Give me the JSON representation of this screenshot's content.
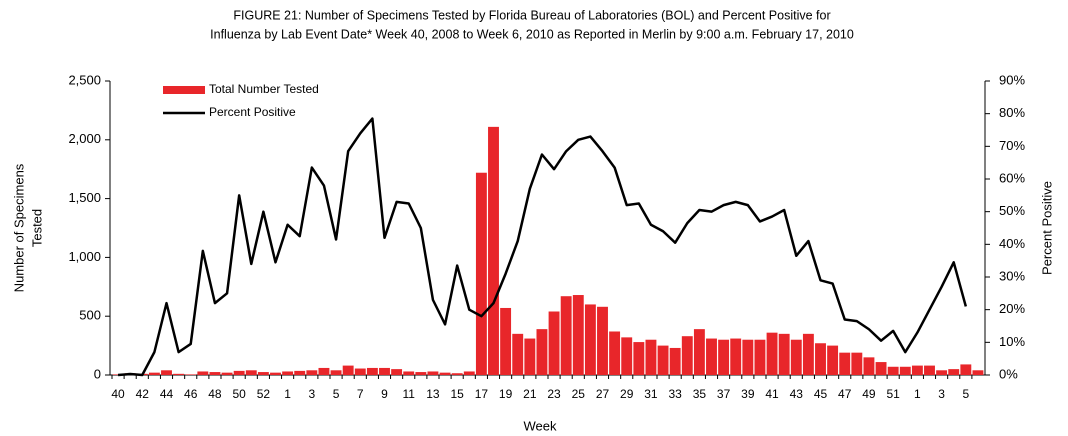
{
  "chart_data": {
    "type": "bar_line",
    "title": [
      "FIGURE 21: Number of Specimens Tested by Florida Bureau of Laboratories (BOL) and Percent Positive for",
      "Influenza by Lab Event Date* Week 40, 2008 to Week 6, 2010 as Reported in Merlin by 9:00 a.m. February 17, 2010"
    ],
    "xlabel": "Week",
    "ylabel": [
      "Number of Specimens",
      "Tested"
    ],
    "y2label": "Percent Positive",
    "categories": [
      "40",
      null,
      "42",
      null,
      "44",
      null,
      "46",
      null,
      "48",
      null,
      "50",
      null,
      "52",
      null,
      "1",
      null,
      "3",
      null,
      "5",
      null,
      "7",
      null,
      "9",
      null,
      "11",
      null,
      "13",
      null,
      "15",
      null,
      "17",
      null,
      "19",
      null,
      "21",
      null,
      "23",
      null,
      "25",
      null,
      "27",
      null,
      "29",
      null,
      "31",
      null,
      "33",
      null,
      "35",
      null,
      "37",
      null,
      "39",
      null,
      "41",
      null,
      "43",
      null,
      "45",
      null,
      "47",
      null,
      "49",
      null,
      "51",
      null,
      "1",
      null,
      "3",
      null,
      "5",
      null
    ],
    "series": [
      {
        "name": "Total Number Tested",
        "type": "bar",
        "color": "#e8262a",
        "values": [
          5,
          15,
          10,
          20,
          40,
          10,
          5,
          30,
          25,
          20,
          35,
          40,
          25,
          20,
          30,
          35,
          40,
          60,
          40,
          80,
          55,
          60,
          60,
          50,
          30,
          25,
          30,
          20,
          15,
          30,
          1720,
          2110,
          570,
          350,
          310,
          390,
          540,
          670,
          680,
          600,
          580,
          370,
          320,
          280,
          300,
          250,
          230,
          330,
          390,
          310,
          300,
          310,
          300,
          300,
          360,
          350,
          300,
          350,
          270,
          250,
          190,
          190,
          150,
          110,
          70,
          70,
          80,
          80,
          40,
          50,
          90,
          40
        ]
      },
      {
        "name": "Percent Positive",
        "type": "line",
        "color": "#000000",
        "axis": "y2",
        "values": [
          0,
          0.3,
          0,
          7,
          22,
          7,
          9.5,
          38,
          22,
          25,
          55,
          34,
          50,
          34.5,
          46,
          42.5,
          63.5,
          58,
          41.5,
          68.5,
          74,
          78.5,
          42,
          53,
          52.5,
          45,
          23,
          15.5,
          33.5,
          20,
          18,
          22,
          31,
          41,
          57,
          67.5,
          63,
          68.5,
          72,
          73,
          68.5,
          63.5,
          52,
          52.5,
          46,
          44,
          40.5,
          46.5,
          50.5,
          50,
          52,
          53,
          52,
          47,
          48.5,
          50.5,
          36.5,
          41,
          29,
          28,
          17,
          16.5,
          14,
          10.5,
          13.5,
          7,
          13,
          20,
          27,
          34.5,
          21,
          null
        ]
      }
    ],
    "ylim": [
      0,
      2500
    ],
    "yticks": [
      0,
      500,
      {
        "value": 1000,
        "label": "1,000"
      },
      {
        "value": 1500,
        "label": "1,500"
      },
      {
        "value": 2000,
        "label": "2,000"
      },
      {
        "value": 2500,
        "label": "2,500"
      }
    ],
    "y2lim": [
      0,
      90
    ],
    "y2ticks": [
      {
        "value": 0,
        "label": "0%"
      },
      {
        "value": 10,
        "label": "10%"
      },
      {
        "value": 20,
        "label": "20%"
      },
      {
        "value": 30,
        "label": "30%"
      },
      {
        "value": 40,
        "label": "40%"
      },
      {
        "value": 50,
        "label": "50%"
      },
      {
        "value": 60,
        "label": "60%"
      },
      {
        "value": 70,
        "label": "70%"
      },
      {
        "value": 80,
        "label": "80%"
      },
      {
        "value": 90,
        "label": "90%"
      }
    ],
    "legend": "top-left"
  }
}
